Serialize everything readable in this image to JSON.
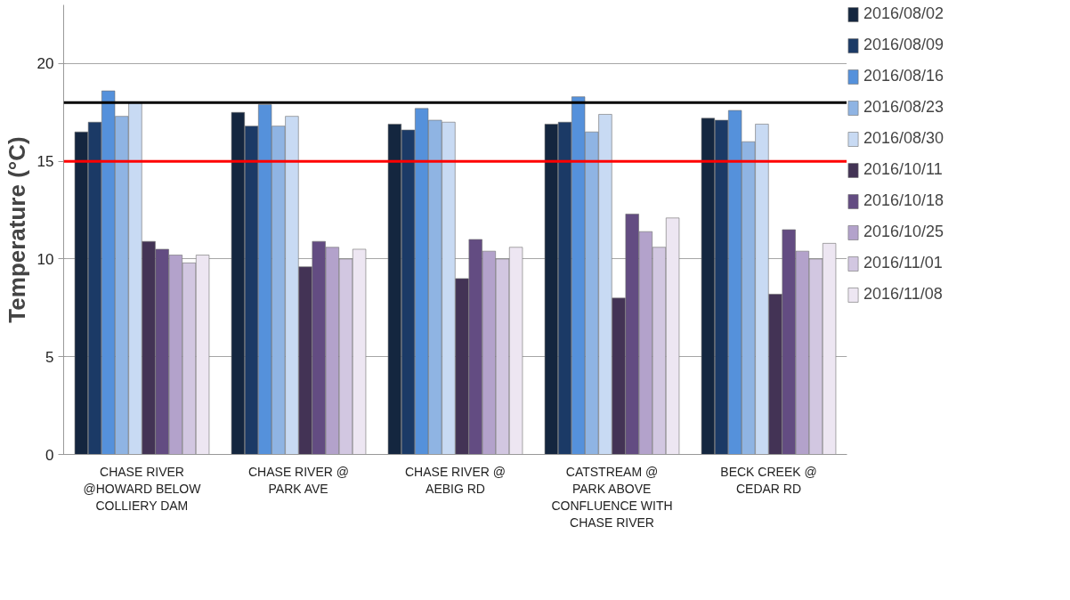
{
  "chart_data": {
    "type": "bar",
    "ylabel": "Temperature (°C)",
    "categories": [
      "CHASE RIVER\n@HOWARD BELOW\nCOLLIERY DAM",
      "CHASE RIVER @\nPARK AVE",
      "CHASE RIVER @\nAEBIG RD",
      "CATSTREAM @\nPARK ABOVE\nCONFLUENCE WITH\nCHASE RIVER",
      "BECK CREEK @\nCEDAR RD"
    ],
    "series": [
      {
        "name": "2016/08/02",
        "color": "#14263f",
        "values": [
          16.5,
          17.5,
          16.9,
          16.9,
          17.2
        ]
      },
      {
        "name": "2016/08/09",
        "color": "#1b3a66",
        "values": [
          17.0,
          16.8,
          16.6,
          17.0,
          17.1
        ]
      },
      {
        "name": "2016/08/16",
        "color": "#5591db",
        "values": [
          18.6,
          17.9,
          17.7,
          18.3,
          17.6
        ]
      },
      {
        "name": "2016/08/23",
        "color": "#8fb4e3",
        "values": [
          17.3,
          16.8,
          17.1,
          16.5,
          16.0
        ]
      },
      {
        "name": "2016/08/30",
        "color": "#c8daf3",
        "values": [
          18.0,
          17.3,
          17.0,
          17.4,
          16.9
        ]
      },
      {
        "name": "2016/10/11",
        "color": "#433355",
        "values": [
          10.9,
          9.6,
          9.0,
          8.0,
          8.2
        ]
      },
      {
        "name": "2016/10/18",
        "color": "#634c82",
        "values": [
          10.5,
          10.9,
          11.0,
          12.3,
          11.5
        ]
      },
      {
        "name": "2016/10/25",
        "color": "#b3a2cb",
        "values": [
          10.2,
          10.6,
          10.4,
          11.4,
          10.4
        ]
      },
      {
        "name": "2016/11/01",
        "color": "#d2c7e1",
        "values": [
          9.8,
          10.0,
          10.0,
          10.6,
          10.0
        ]
      },
      {
        "name": "2016/11/08",
        "color": "#ede6f2",
        "values": [
          10.2,
          10.5,
          10.6,
          12.1,
          10.8
        ]
      }
    ],
    "ylim": [
      0,
      23
    ],
    "yticks": [
      0,
      5,
      10,
      15,
      20
    ],
    "grid": "y",
    "legend": "right",
    "ref_lines": [
      {
        "axis": "y",
        "value": 18,
        "color": "#000000"
      },
      {
        "axis": "y",
        "value": 15,
        "color": "#ff0000"
      }
    ]
  }
}
